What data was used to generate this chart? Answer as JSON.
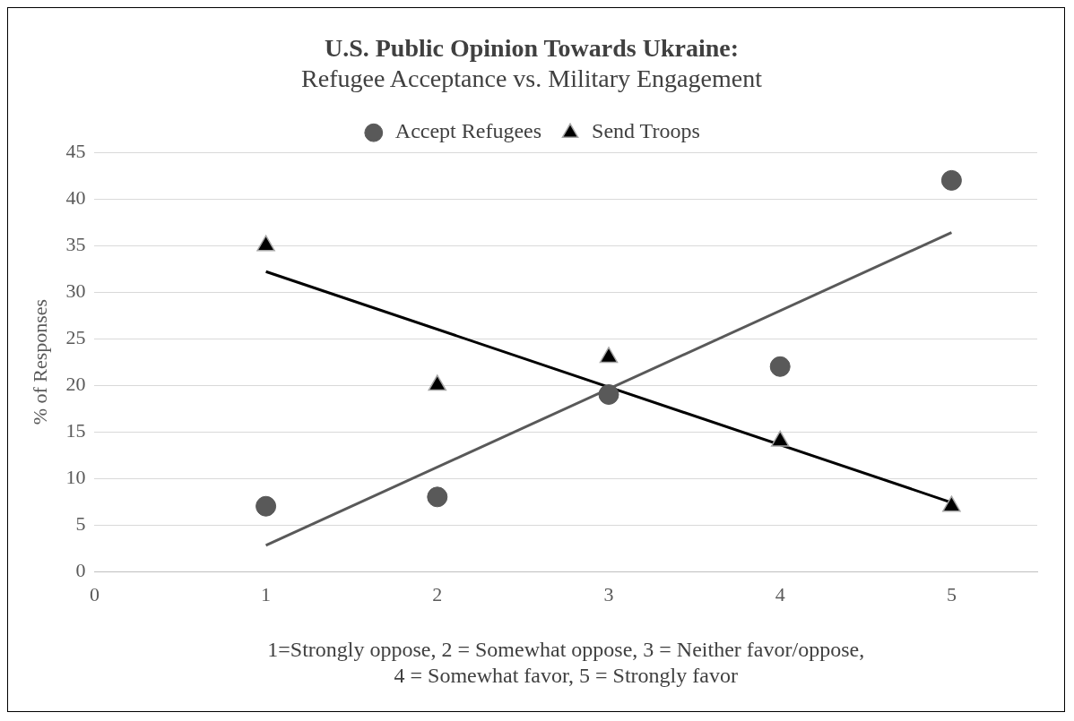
{
  "chart_data": {
    "type": "scatter",
    "title": "U.S. Public Opinion Towards Ukraine:",
    "subtitle": "Refugee Acceptance vs. Military Engagement",
    "xlabel": "1=Strongly oppose, 2 = Somewhat oppose, 3 = Neither favor/oppose,\n4 = Somewhat favor, 5 = Strongly favor",
    "ylabel": "% of Responses",
    "series": [
      {
        "name": "Accept Refugees",
        "type": "scatter",
        "marker": "circle",
        "color": "#595959",
        "x": [
          1,
          2,
          3,
          4,
          5
        ],
        "values": [
          7,
          8,
          19,
          22,
          42
        ]
      },
      {
        "name": "Send Troops",
        "type": "scatter",
        "marker": "triangle",
        "color": "#000000",
        "x": [
          1,
          2,
          3,
          4,
          5
        ],
        "values": [
          35,
          20,
          23,
          14,
          7
        ]
      },
      {
        "type": "line",
        "marker": "none",
        "color": "#595959",
        "x": [
          1,
          5
        ],
        "values": [
          2.8,
          36.4
        ]
      },
      {
        "type": "line",
        "marker": "none",
        "color": "#000000",
        "x": [
          1,
          5
        ],
        "values": [
          32.2,
          7.4
        ]
      }
    ],
    "xlim": [
      0,
      5.5
    ],
    "xticks": [
      0,
      1,
      2,
      3,
      4,
      5
    ],
    "ylim": [
      0,
      45
    ],
    "yticks": [
      0,
      5,
      10,
      15,
      20,
      25,
      30,
      35,
      40,
      45
    ],
    "grid": "y",
    "legend": "top"
  }
}
